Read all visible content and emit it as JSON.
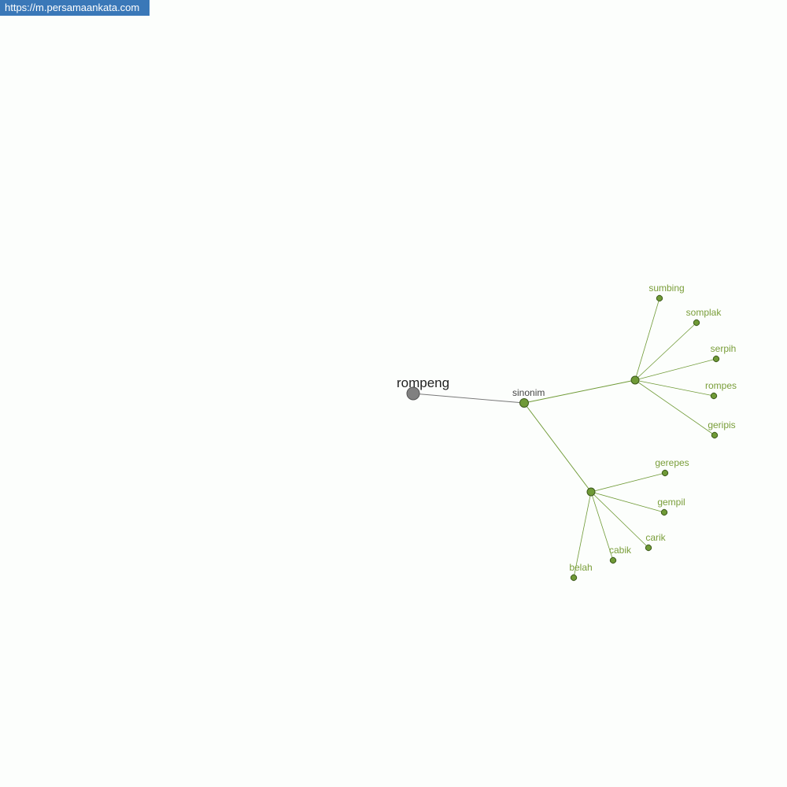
{
  "source_url": "https://m.persamaankata.com",
  "colors": {
    "root": "#808080",
    "relation": "#6f9a36",
    "leaf": "#6f9a36",
    "leaf_text": "#7a9e3a",
    "root_edge": "#777777"
  },
  "graph": {
    "root": "rompeng",
    "relation": "sinonim",
    "groups": [
      {
        "words": [
          "sumbing",
          "somplak",
          "serpih",
          "rompes",
          "geripis"
        ]
      },
      {
        "words": [
          "gerepes",
          "gempil",
          "carik",
          "cabik",
          "belah"
        ]
      }
    ]
  }
}
